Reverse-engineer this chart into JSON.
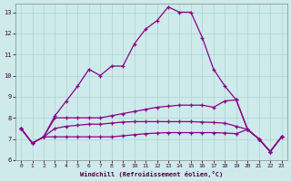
{
  "xlabel": "Windchill (Refroidissement éolien,°C)",
  "background_color": "#ceeaea",
  "line_color": "#880088",
  "grid_color": "#aad4d4",
  "xlim": [
    -0.5,
    23.5
  ],
  "ylim": [
    6,
    13.4
  ],
  "yticks": [
    6,
    7,
    8,
    9,
    10,
    11,
    12,
    13
  ],
  "xticks": [
    0,
    1,
    2,
    3,
    4,
    5,
    6,
    7,
    8,
    9,
    10,
    11,
    12,
    13,
    14,
    15,
    16,
    17,
    18,
    19,
    20,
    21,
    22,
    23
  ],
  "series": {
    "main": [
      7.5,
      6.8,
      7.1,
      8.1,
      8.8,
      9.5,
      10.3,
      10.0,
      10.45,
      10.45,
      11.5,
      12.2,
      12.6,
      13.25,
      13.0,
      13.0,
      11.8,
      10.3,
      9.5,
      8.85,
      7.45,
      7.0,
      6.4,
      7.1
    ],
    "line2": [
      7.5,
      6.8,
      7.1,
      8.0,
      8.0,
      8.0,
      8.0,
      8.0,
      8.1,
      8.2,
      8.3,
      8.4,
      8.5,
      8.55,
      8.6,
      8.6,
      8.6,
      8.5,
      8.8,
      8.85,
      7.45,
      7.0,
      6.4,
      7.1
    ],
    "line3": [
      7.5,
      6.8,
      7.1,
      7.5,
      7.6,
      7.65,
      7.7,
      7.7,
      7.75,
      7.8,
      7.82,
      7.82,
      7.82,
      7.82,
      7.82,
      7.82,
      7.8,
      7.78,
      7.75,
      7.6,
      7.45,
      7.0,
      6.4,
      7.1
    ],
    "line4": [
      7.5,
      6.8,
      7.1,
      7.1,
      7.1,
      7.1,
      7.1,
      7.1,
      7.1,
      7.15,
      7.2,
      7.25,
      7.28,
      7.3,
      7.3,
      7.3,
      7.3,
      7.3,
      7.28,
      7.25,
      7.45,
      7.0,
      6.4,
      7.1
    ]
  }
}
